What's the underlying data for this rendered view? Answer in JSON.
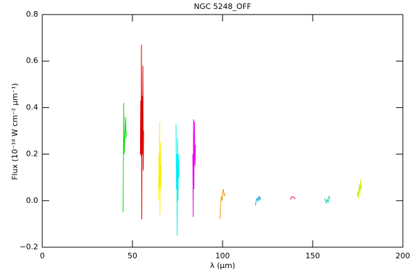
{
  "chart_data": {
    "type": "line",
    "title": "NGC 5248_OFF",
    "x_label": "λ (μm)",
    "y_label": "Flux (10⁻¹⁸ W cm⁻² μm⁻¹)",
    "xlim": [
      0,
      200
    ],
    "xticks": [
      0,
      50,
      100,
      150,
      200
    ],
    "ylim": [
      -0.2,
      0.8
    ],
    "yticks": [
      {
        "value": -0.2,
        "label": "−0.2"
      },
      {
        "value": 0,
        "label": "0.0"
      },
      0.2,
      0.4,
      0.6,
      0.8
    ],
    "series": [
      {
        "color": "#00dd00",
        "x": [
          44.8,
          45.0,
          45.2,
          45.4,
          45.8,
          46.2,
          46.5,
          46.6
        ],
        "values": [
          -0.05,
          0.17,
          0.42,
          0.2,
          0.28,
          0.36,
          0.27,
          0.3
        ]
      },
      {
        "color": "#dd0000",
        "x": [
          54.4,
          54.6,
          54.8,
          55.0,
          55.2,
          55.4,
          55.6,
          55.8,
          56.0,
          56.2
        ],
        "values": [
          0.2,
          0.43,
          0.19,
          0.67,
          -0.08,
          0.45,
          0.2,
          0.58,
          0.13,
          0.3
        ]
      },
      {
        "color": "#ffee00",
        "x": [
          64.5,
          64.7,
          64.9,
          65.1,
          65.3,
          65.5,
          65.7,
          66.0
        ],
        "values": [
          0.0,
          0.2,
          0.05,
          0.34,
          -0.06,
          0.25,
          0.05,
          0.15
        ]
      },
      {
        "color": "#00eeee",
        "x": [
          74.2,
          74.4,
          74.6,
          74.8,
          75.0,
          75.3,
          75.6,
          75.9
        ],
        "values": [
          0.33,
          0.05,
          0.2,
          -0.15,
          0.27,
          0.0,
          0.2,
          0.1
        ]
      },
      {
        "color": "#ee00ee",
        "x": [
          83.5,
          83.7,
          83.9,
          84.1,
          84.4,
          84.7,
          85.0
        ],
        "values": [
          0.2,
          -0.07,
          0.35,
          0.05,
          0.34,
          0.15,
          0.24
        ]
      },
      {
        "color": "#ee9900",
        "x": [
          98.5,
          98.9,
          99.3,
          99.7,
          100.1,
          100.5,
          100.9,
          101.4
        ],
        "values": [
          -0.08,
          -0.02,
          0.02,
          0.0,
          0.04,
          0.05,
          0.02,
          0.03
        ]
      },
      {
        "color": "#0099dd",
        "x": [
          118.2,
          118.7,
          119.2,
          119.7,
          120.2,
          120.7,
          121.1
        ],
        "values": [
          -0.02,
          0.0,
          0.01,
          0.0,
          0.02,
          0.005,
          0.015
        ]
      },
      {
        "color": "#ee0066",
        "x": [
          137.6,
          138.2,
          138.8,
          139.4,
          140.0,
          140.5
        ],
        "values": [
          0.005,
          0.015,
          0.017,
          0.015,
          0.01,
          0.01
        ]
      },
      {
        "color": "#00ccaa",
        "x": [
          156.6,
          157.1,
          157.6,
          158.1,
          158.6,
          159.1,
          159.5
        ],
        "values": [
          0.01,
          0.0,
          -0.01,
          0.005,
          -0.005,
          0.02,
          0.01
        ]
      },
      {
        "color": "#ccee00",
        "x": [
          174.6,
          175.0,
          175.4,
          175.8,
          176.2,
          176.5,
          176.8,
          177.1
        ],
        "values": [
          0.02,
          0.04,
          0.01,
          0.07,
          0.03,
          0.09,
          0.05,
          0.06
        ]
      }
    ]
  }
}
